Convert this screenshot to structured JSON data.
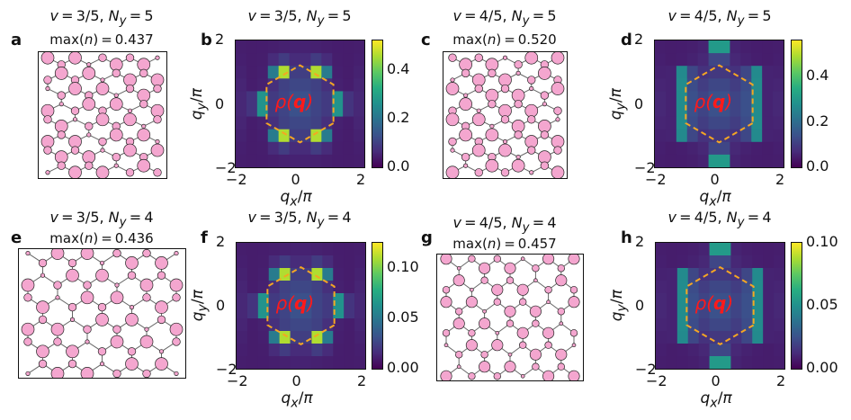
{
  "panels": [
    {
      "label": "a",
      "kind": "lattice",
      "title": "v = 3/5, N_y = 5",
      "titleHtml": "<i>v</i>&thinsp;=&thinsp;3/5, <i>N<sub>y</sub></i>&thinsp;=&thinsp;5",
      "max": "max(n) = 0.437",
      "maxHtml": "max(<i>n</i>)&thinsp;=&thinsp;0.437"
    },
    {
      "label": "b",
      "kind": "heatmap",
      "title": "v = 3/5, N_y = 5",
      "titleHtml": "<i>v</i>&thinsp;=&thinsp;3/5, <i>N<sub>y</sub></i>&thinsp;=&thinsp;5",
      "cbticks": [
        "0.0",
        "0.2",
        "0.4"
      ],
      "cbmax": 0.52
    },
    {
      "label": "c",
      "kind": "lattice",
      "title": "v = 4/5, N_y = 5",
      "titleHtml": "<i>v</i>&thinsp;=&thinsp;4/5, <i>N<sub>y</sub></i>&thinsp;=&thinsp;5",
      "max": "max(n) = 0.520",
      "maxHtml": "max(<i>n</i>)&thinsp;=&thinsp;0.520"
    },
    {
      "label": "d",
      "kind": "heatmap",
      "title": "v = 4/5, N_y = 5",
      "titleHtml": "<i>v</i>&thinsp;=&thinsp;4/5, <i>N<sub>y</sub></i>&thinsp;=&thinsp;5",
      "cbticks": [
        "0.0",
        "0.2",
        "0.4"
      ],
      "cbmax": 0.56
    },
    {
      "label": "e",
      "kind": "lattice",
      "title": "v = 3/5, N_y = 4",
      "titleHtml": "<i>v</i>&thinsp;=&thinsp;3/5, <i>N<sub>y</sub></i>&thinsp;=&thinsp;4",
      "max": "max(n) = 0.436",
      "maxHtml": "max(<i>n</i>)&thinsp;=&thinsp;0.436"
    },
    {
      "label": "f",
      "kind": "heatmap",
      "title": "v = 3/5, N_y = 4",
      "titleHtml": "<i>v</i>&thinsp;=&thinsp;3/5, <i>N<sub>y</sub></i>&thinsp;=&thinsp;4",
      "cbticks": [
        "0.00",
        "0.05",
        "0.10"
      ],
      "cbmax": 0.125
    },
    {
      "label": "g",
      "kind": "lattice",
      "title": "v = 4/5, N_y = 4",
      "titleHtml": "<i>v</i>&thinsp;=&thinsp;4/5, <i>N<sub>y</sub></i>&thinsp;=&thinsp;4",
      "max": "max(n) = 0.457",
      "maxHtml": "max(<i>n</i>)&thinsp;=&thinsp;0.457"
    },
    {
      "label": "h",
      "kind": "heatmap",
      "title": "v = 4/5, N_y = 4",
      "titleHtml": "<i>v</i>&thinsp;=&thinsp;4/5, <i>N<sub>y</sub></i>&thinsp;=&thinsp;4",
      "cbticks": [
        "0.00",
        "0.05",
        "0.10"
      ],
      "cbmax": 0.1
    }
  ],
  "axis": {
    "ticks": [
      "−2",
      "0",
      "2"
    ],
    "xlabel": "q_x/π",
    "ylabel": "q_y/π",
    "range": [
      -2,
      2
    ]
  },
  "annotation": "ρ(q)",
  "colors": {
    "site": "#f4a6cf",
    "bond": "#666666",
    "hexagon": "#f5a623",
    "rho": "#ff1a1a"
  }
}
